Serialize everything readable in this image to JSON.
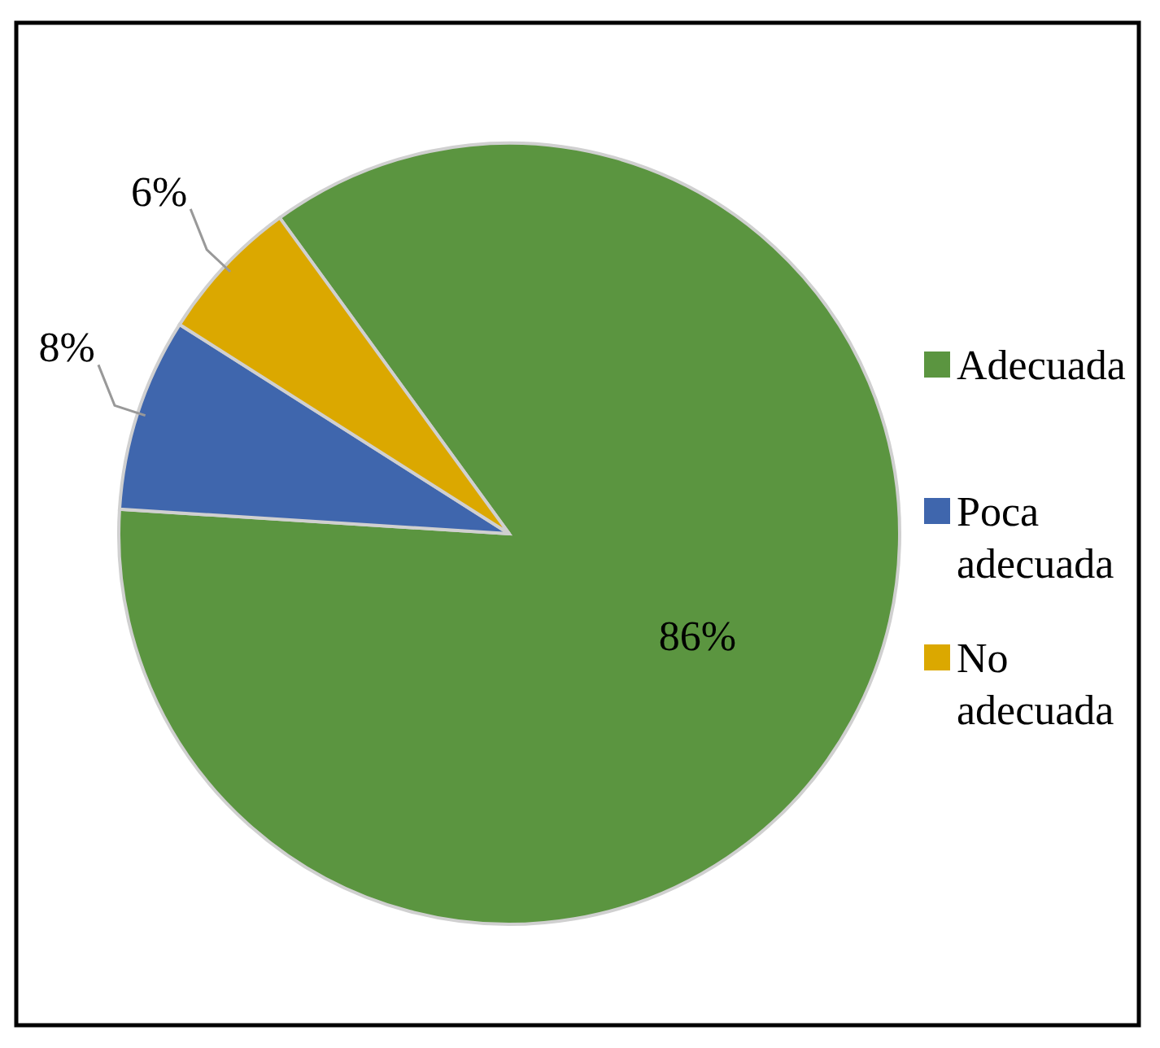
{
  "chart_data": {
    "type": "pie",
    "categories": [
      "Adecuada",
      "Poca adecuada",
      "No adecuada"
    ],
    "values": [
      86,
      8,
      6
    ],
    "colors": [
      "#5b9540",
      "#3f66ad",
      "#dba800"
    ],
    "value_labels": [
      "86%",
      "8%",
      "6%"
    ],
    "legend": "right"
  }
}
